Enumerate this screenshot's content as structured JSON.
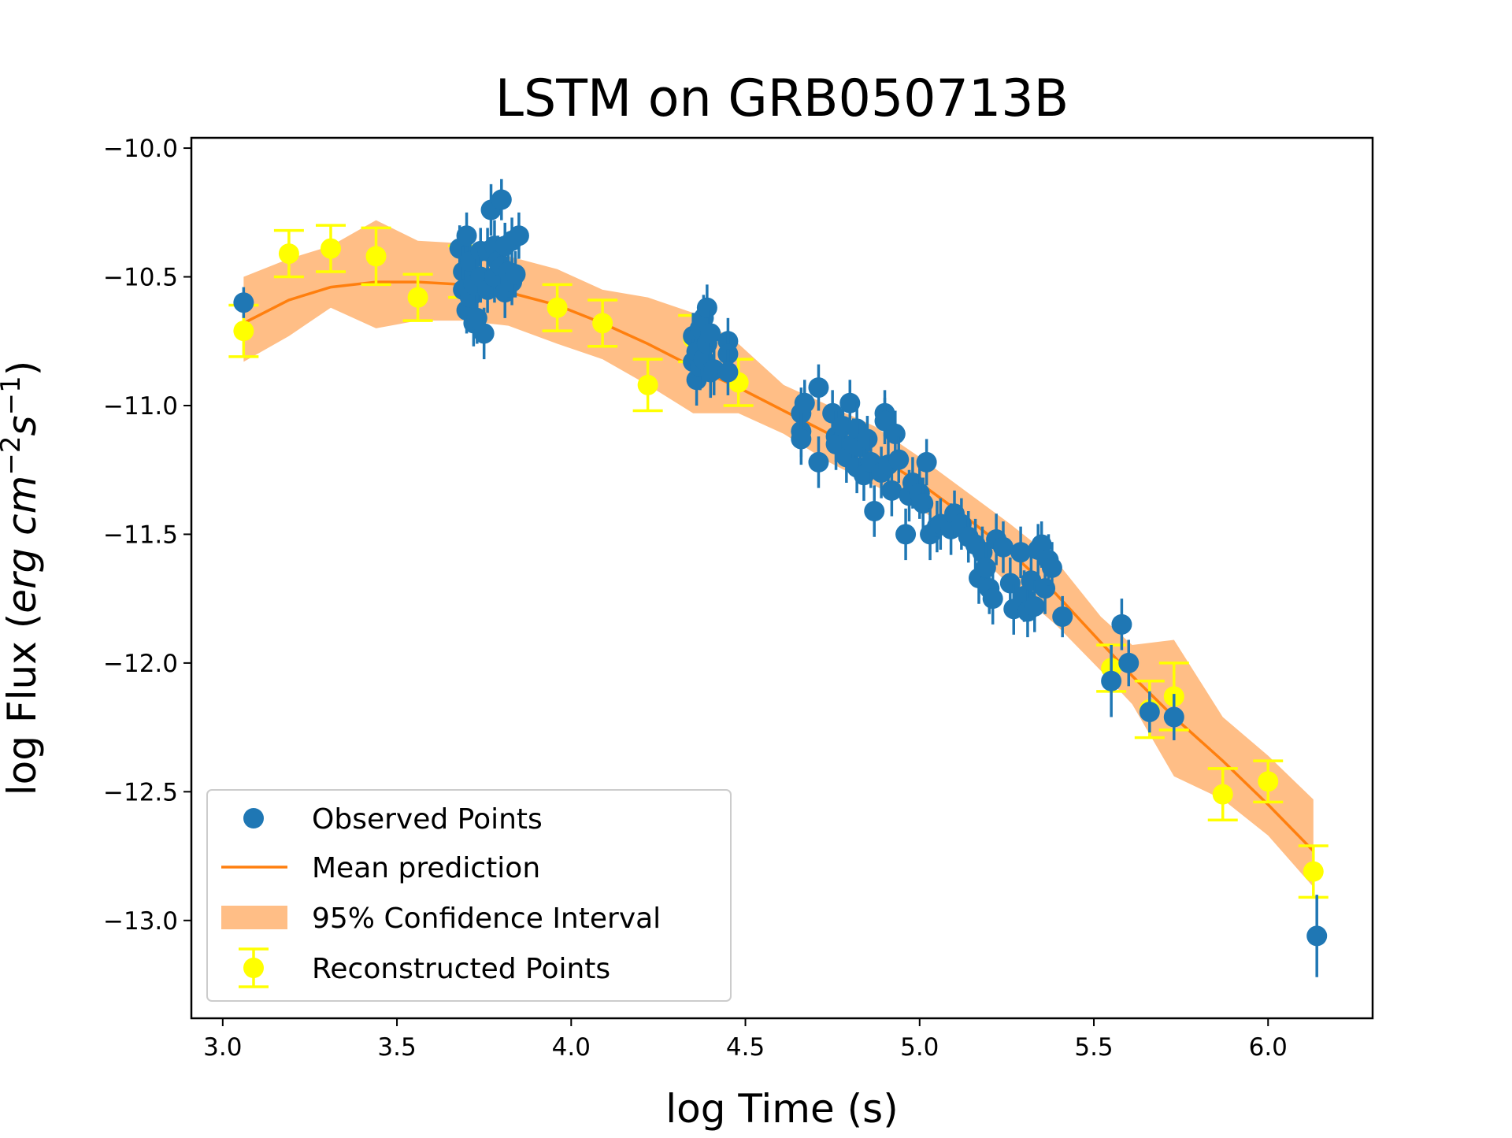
{
  "chart_data": {
    "type": "scatter",
    "title": "LSTM on GRB050713B",
    "xlabel": "log Time (s)",
    "ylabel": {
      "prefix": "log Flux (",
      "unit_parts": [
        {
          "text": "erg cm",
          "italic": true,
          "sup": false
        },
        {
          "text": "−2",
          "italic": false,
          "sup": true
        },
        {
          "text": "s",
          "italic": true,
          "sup": false
        },
        {
          "text": "−1",
          "italic": false,
          "sup": true
        }
      ],
      "suffix": ")"
    },
    "xlim": [
      2.91,
      6.3
    ],
    "ylim": [
      -13.38,
      -9.96
    ],
    "x_ticks": [
      3.0,
      3.5,
      4.0,
      4.5,
      5.0,
      5.5,
      6.0
    ],
    "x_tick_labels": [
      "3.0",
      "3.5",
      "4.0",
      "4.5",
      "5.0",
      "5.5",
      "6.0"
    ],
    "y_ticks": [
      -10.0,
      -10.5,
      -11.0,
      -11.5,
      -12.0,
      -12.5,
      -13.0
    ],
    "y_tick_labels": [
      "−10.0",
      "−10.5",
      "−11.0",
      "−11.5",
      "−12.0",
      "−12.5",
      "−13.0"
    ],
    "grid": false,
    "legend_position": "lower-left",
    "legend": [
      {
        "label": "Observed Points",
        "kind": "marker",
        "color": "#1f77b4"
      },
      {
        "label": "Mean prediction",
        "kind": "line",
        "color": "#ff7f0e"
      },
      {
        "label": "95% Confidence Interval",
        "kind": "band",
        "color": "#ffbe86"
      },
      {
        "label": "Reconstructed Points",
        "kind": "errorbar",
        "color": "#ffff00"
      }
    ],
    "series": [
      {
        "name": "Mean prediction",
        "kind": "line",
        "color": "#ff7f0e",
        "points": [
          [
            3.06,
            -10.68
          ],
          [
            3.19,
            -10.59
          ],
          [
            3.31,
            -10.54
          ],
          [
            3.44,
            -10.52
          ],
          [
            3.56,
            -10.52
          ],
          [
            3.69,
            -10.53
          ],
          [
            3.82,
            -10.56
          ],
          [
            3.96,
            -10.61
          ],
          [
            4.09,
            -10.68
          ],
          [
            4.22,
            -10.76
          ],
          [
            4.35,
            -10.85
          ],
          [
            4.48,
            -10.93
          ],
          [
            4.61,
            -11.02
          ],
          [
            4.74,
            -11.11
          ],
          [
            4.87,
            -11.19
          ],
          [
            5.0,
            -11.3
          ],
          [
            5.13,
            -11.43
          ],
          [
            5.26,
            -11.57
          ],
          [
            5.39,
            -11.73
          ],
          [
            5.52,
            -11.92
          ],
          [
            5.61,
            -12.05
          ],
          [
            5.73,
            -12.21
          ],
          [
            5.87,
            -12.38
          ],
          [
            6.0,
            -12.55
          ],
          [
            6.13,
            -12.73
          ]
        ]
      },
      {
        "name": "95% Confidence Interval",
        "kind": "band",
        "color": "#ffbe86",
        "upper": [
          [
            3.06,
            -10.5
          ],
          [
            3.19,
            -10.43
          ],
          [
            3.31,
            -10.38
          ],
          [
            3.44,
            -10.28
          ],
          [
            3.56,
            -10.36
          ],
          [
            3.69,
            -10.37
          ],
          [
            3.82,
            -10.42
          ],
          [
            3.96,
            -10.47
          ],
          [
            4.09,
            -10.55
          ],
          [
            4.22,
            -10.58
          ],
          [
            4.35,
            -10.64
          ],
          [
            4.48,
            -10.76
          ],
          [
            4.61,
            -10.92
          ],
          [
            4.74,
            -11.0
          ],
          [
            4.87,
            -11.08
          ],
          [
            5.0,
            -11.2
          ],
          [
            5.13,
            -11.33
          ],
          [
            5.26,
            -11.46
          ],
          [
            5.39,
            -11.6
          ],
          [
            5.52,
            -11.82
          ],
          [
            5.61,
            -11.93
          ],
          [
            5.73,
            -11.91
          ],
          [
            5.87,
            -12.21
          ],
          [
            6.0,
            -12.36
          ],
          [
            6.13,
            -12.53
          ]
        ],
        "lower": [
          [
            3.06,
            -10.83
          ],
          [
            3.19,
            -10.73
          ],
          [
            3.31,
            -10.62
          ],
          [
            3.44,
            -10.7
          ],
          [
            3.56,
            -10.67
          ],
          [
            3.69,
            -10.67
          ],
          [
            3.82,
            -10.69
          ],
          [
            3.96,
            -10.76
          ],
          [
            4.09,
            -10.82
          ],
          [
            4.22,
            -10.92
          ],
          [
            4.35,
            -11.03
          ],
          [
            4.48,
            -11.03
          ],
          [
            4.61,
            -11.11
          ],
          [
            4.74,
            -11.22
          ],
          [
            4.87,
            -11.31
          ],
          [
            5.0,
            -11.4
          ],
          [
            5.13,
            -11.53
          ],
          [
            5.26,
            -11.7
          ],
          [
            5.39,
            -11.85
          ],
          [
            5.52,
            -12.03
          ],
          [
            5.61,
            -12.16
          ],
          [
            5.73,
            -12.44
          ],
          [
            5.87,
            -12.53
          ],
          [
            6.0,
            -12.67
          ],
          [
            6.13,
            -12.87
          ]
        ]
      },
      {
        "name": "Reconstructed Points",
        "kind": "errorbar",
        "color": "#ffff00",
        "points": [
          [
            3.06,
            -10.71,
            0.1
          ],
          [
            3.19,
            -10.41,
            0.09
          ],
          [
            3.31,
            -10.39,
            0.09
          ],
          [
            3.44,
            -10.42,
            0.11
          ],
          [
            3.56,
            -10.58,
            0.09
          ],
          [
            3.69,
            -10.48,
            0.1
          ],
          [
            3.96,
            -10.62,
            0.09
          ],
          [
            4.09,
            -10.68,
            0.09
          ],
          [
            4.22,
            -10.92,
            0.1
          ],
          [
            4.35,
            -10.74,
            0.09
          ],
          [
            4.48,
            -10.91,
            0.09
          ],
          [
            5.55,
            -12.02,
            0.09
          ],
          [
            5.66,
            -12.18,
            0.11
          ],
          [
            5.73,
            -12.13,
            0.13
          ],
          [
            5.87,
            -12.51,
            0.1
          ],
          [
            6.0,
            -12.46,
            0.08
          ],
          [
            6.13,
            -12.81,
            0.1
          ]
        ]
      },
      {
        "name": "Observed Points",
        "kind": "errorbar",
        "color": "#1f77b4",
        "points": [
          [
            3.06,
            -10.6,
            0.06
          ],
          [
            3.68,
            -10.39,
            0.09
          ],
          [
            3.69,
            -10.48,
            0.1
          ],
          [
            3.69,
            -10.55,
            0.1
          ],
          [
            3.7,
            -10.34,
            0.09
          ],
          [
            3.7,
            -10.63,
            0.09
          ],
          [
            3.71,
            -10.58,
            0.1
          ],
          [
            3.71,
            -10.44,
            0.09
          ],
          [
            3.72,
            -10.68,
            0.09
          ],
          [
            3.72,
            -10.53,
            0.1
          ],
          [
            3.73,
            -10.66,
            0.1
          ],
          [
            3.74,
            -10.4,
            0.09
          ],
          [
            3.74,
            -10.5,
            0.1
          ],
          [
            3.75,
            -10.72,
            0.1
          ],
          [
            3.76,
            -10.55,
            0.09
          ],
          [
            3.76,
            -10.4,
            0.09
          ],
          [
            3.77,
            -10.24,
            0.1
          ],
          [
            3.78,
            -10.38,
            0.1
          ],
          [
            3.78,
            -10.5,
            0.1
          ],
          [
            3.79,
            -10.44,
            0.1
          ],
          [
            3.8,
            -10.2,
            0.08
          ],
          [
            3.8,
            -10.46,
            0.1
          ],
          [
            3.81,
            -10.56,
            0.1
          ],
          [
            3.81,
            -10.38,
            0.09
          ],
          [
            3.82,
            -10.48,
            0.1
          ],
          [
            3.83,
            -10.52,
            0.09
          ],
          [
            3.83,
            -10.36,
            0.09
          ],
          [
            3.84,
            -10.49,
            0.09
          ],
          [
            3.85,
            -10.34,
            0.09
          ],
          [
            4.35,
            -10.73,
            0.09
          ],
          [
            4.35,
            -10.83,
            0.09
          ],
          [
            4.36,
            -10.79,
            0.09
          ],
          [
            4.36,
            -10.9,
            0.1
          ],
          [
            4.37,
            -10.85,
            0.09
          ],
          [
            4.37,
            -10.7,
            0.1
          ],
          [
            4.38,
            -10.66,
            0.09
          ],
          [
            4.38,
            -10.82,
            0.1
          ],
          [
            4.39,
            -10.62,
            0.09
          ],
          [
            4.39,
            -10.76,
            0.1
          ],
          [
            4.4,
            -10.72,
            0.09
          ],
          [
            4.4,
            -10.87,
            0.1
          ],
          [
            4.41,
            -10.86,
            0.1
          ],
          [
            4.45,
            -10.75,
            0.09
          ],
          [
            4.45,
            -10.8,
            0.09
          ],
          [
            4.45,
            -10.87,
            0.09
          ],
          [
            4.66,
            -11.03,
            0.1
          ],
          [
            4.66,
            -11.1,
            0.1
          ],
          [
            4.66,
            -11.13,
            0.1
          ],
          [
            4.67,
            -10.99,
            0.09
          ],
          [
            4.71,
            -11.22,
            0.1
          ],
          [
            4.71,
            -10.93,
            0.09
          ],
          [
            4.75,
            -11.03,
            0.09
          ],
          [
            4.76,
            -11.12,
            0.1
          ],
          [
            4.76,
            -11.15,
            0.1
          ],
          [
            4.78,
            -11.08,
            0.09
          ],
          [
            4.79,
            -11.2,
            0.1
          ],
          [
            4.8,
            -10.99,
            0.09
          ],
          [
            4.81,
            -11.15,
            0.1
          ],
          [
            4.82,
            -11.09,
            0.1
          ],
          [
            4.82,
            -11.24,
            0.1
          ],
          [
            4.83,
            -11.16,
            0.1
          ],
          [
            4.84,
            -11.27,
            0.1
          ],
          [
            4.85,
            -11.13,
            0.09
          ],
          [
            4.86,
            -11.22,
            0.1
          ],
          [
            4.87,
            -11.41,
            0.1
          ],
          [
            4.89,
            -11.26,
            0.1
          ],
          [
            4.9,
            -11.03,
            0.09
          ],
          [
            4.9,
            -11.06,
            0.09
          ],
          [
            4.91,
            -11.23,
            0.1
          ],
          [
            4.92,
            -11.33,
            0.1
          ],
          [
            4.93,
            -11.11,
            0.09
          ],
          [
            4.94,
            -11.21,
            0.09
          ],
          [
            4.96,
            -11.5,
            0.1
          ],
          [
            4.97,
            -11.35,
            0.1
          ],
          [
            4.98,
            -11.3,
            0.1
          ],
          [
            5.0,
            -11.34,
            0.1
          ],
          [
            5.01,
            -11.38,
            0.1
          ],
          [
            5.02,
            -11.22,
            0.09
          ],
          [
            5.03,
            -11.5,
            0.1
          ],
          [
            5.05,
            -11.47,
            0.1
          ],
          [
            5.06,
            -11.46,
            0.1
          ],
          [
            5.09,
            -11.48,
            0.1
          ],
          [
            5.1,
            -11.42,
            0.09
          ],
          [
            5.12,
            -11.46,
            0.1
          ],
          [
            5.14,
            -11.51,
            0.1
          ],
          [
            5.16,
            -11.54,
            0.1
          ],
          [
            5.17,
            -11.67,
            0.1
          ],
          [
            5.18,
            -11.57,
            0.1
          ],
          [
            5.19,
            -11.63,
            0.1
          ],
          [
            5.2,
            -11.71,
            0.1
          ],
          [
            5.21,
            -11.75,
            0.1
          ],
          [
            5.22,
            -11.52,
            0.1
          ],
          [
            5.24,
            -11.55,
            0.1
          ],
          [
            5.26,
            -11.69,
            0.1
          ],
          [
            5.27,
            -11.79,
            0.1
          ],
          [
            5.29,
            -11.57,
            0.1
          ],
          [
            5.3,
            -11.74,
            0.1
          ],
          [
            5.31,
            -11.8,
            0.1
          ],
          [
            5.32,
            -11.68,
            0.1
          ],
          [
            5.33,
            -11.78,
            0.1
          ],
          [
            5.34,
            -11.56,
            0.1
          ],
          [
            5.35,
            -11.54,
            0.09
          ],
          [
            5.36,
            -11.71,
            0.1
          ],
          [
            5.37,
            -11.6,
            0.1
          ],
          [
            5.38,
            -11.63,
            0.1
          ],
          [
            5.41,
            -11.82,
            0.08
          ],
          [
            5.55,
            -12.07,
            0.14
          ],
          [
            5.58,
            -11.85,
            0.1
          ],
          [
            5.6,
            -12.0,
            0.09
          ],
          [
            5.66,
            -12.19,
            0.08
          ],
          [
            5.73,
            -12.21,
            0.09
          ],
          [
            6.14,
            -13.06,
            0.16
          ]
        ]
      }
    ]
  }
}
